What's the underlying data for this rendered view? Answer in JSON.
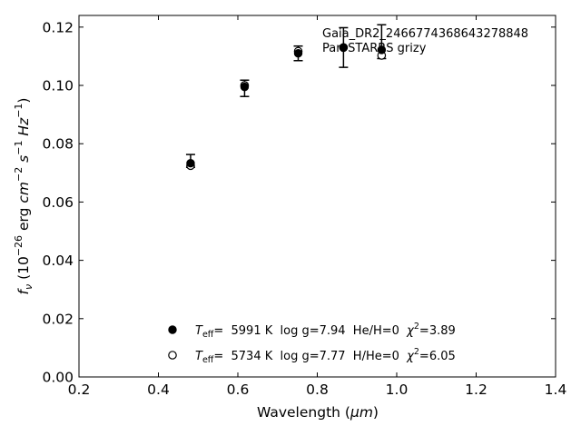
{
  "chart_data": {
    "type": "scatter",
    "xlabel_main": "Wavelength (",
    "xlabel_unit": "μm",
    "xlabel_close": ")",
    "ylabel_parts": {
      "f": "f",
      "sub": "ν",
      "open": " (10",
      "exp": "−26",
      "mid": " erg ",
      "cm": "cm",
      "cm_exp": "−2",
      "s": " s",
      "s_exp": "−1",
      "hz": " Hz",
      "hz_exp": "−1",
      "close": ")"
    },
    "xlim": [
      0.2,
      1.4
    ],
    "ylim": [
      0.0,
      0.124
    ],
    "xticks": [
      0.2,
      0.4,
      0.6,
      0.8,
      1.0,
      1.2,
      1.4
    ],
    "xtick_labels": [
      "0.2",
      "0.4",
      "0.6",
      "0.8",
      "1.0",
      "1.2",
      "1.4"
    ],
    "yticks": [
      0.0,
      0.02,
      0.04,
      0.06,
      0.08,
      0.1,
      0.12
    ],
    "ytick_labels": [
      "0.00",
      "0.02",
      "0.04",
      "0.06",
      "0.08",
      "0.10",
      "0.12"
    ],
    "annotation": [
      "Gaia_DR2_2466774368643278848",
      "Pan-STARRS grizy"
    ],
    "observed": {
      "x": [
        0.481,
        0.617,
        0.752,
        0.866,
        0.962
      ],
      "y": [
        0.0741,
        0.099,
        0.111,
        0.113,
        0.115
      ],
      "err": [
        0.0022,
        0.0028,
        0.0025,
        0.0068,
        0.0058
      ]
    },
    "series": [
      {
        "marker": "filled",
        "x": [
          0.481,
          0.617,
          0.752,
          0.866,
          0.962
        ],
        "y": [
          0.0733,
          0.0995,
          0.111,
          0.113,
          0.1122
        ],
        "legend": {
          "teff": "T",
          "teff_sub": "eff",
          "rest": "=  5991 K  log g=7.94  He/H=0  ",
          "chi": "χ",
          "chi_exp": "2",
          "chi_val": "=3.89"
        }
      },
      {
        "marker": "open",
        "x": [
          0.481,
          0.617,
          0.752,
          0.866,
          0.962
        ],
        "y": [
          0.0725,
          0.1,
          0.1117,
          0.113,
          0.1103
        ],
        "legend": {
          "teff": "T",
          "teff_sub": "eff",
          "rest": "=  5734 K  log g=7.77  H/He=0  ",
          "chi": "χ",
          "chi_exp": "2",
          "chi_val": "=6.05"
        }
      }
    ]
  }
}
